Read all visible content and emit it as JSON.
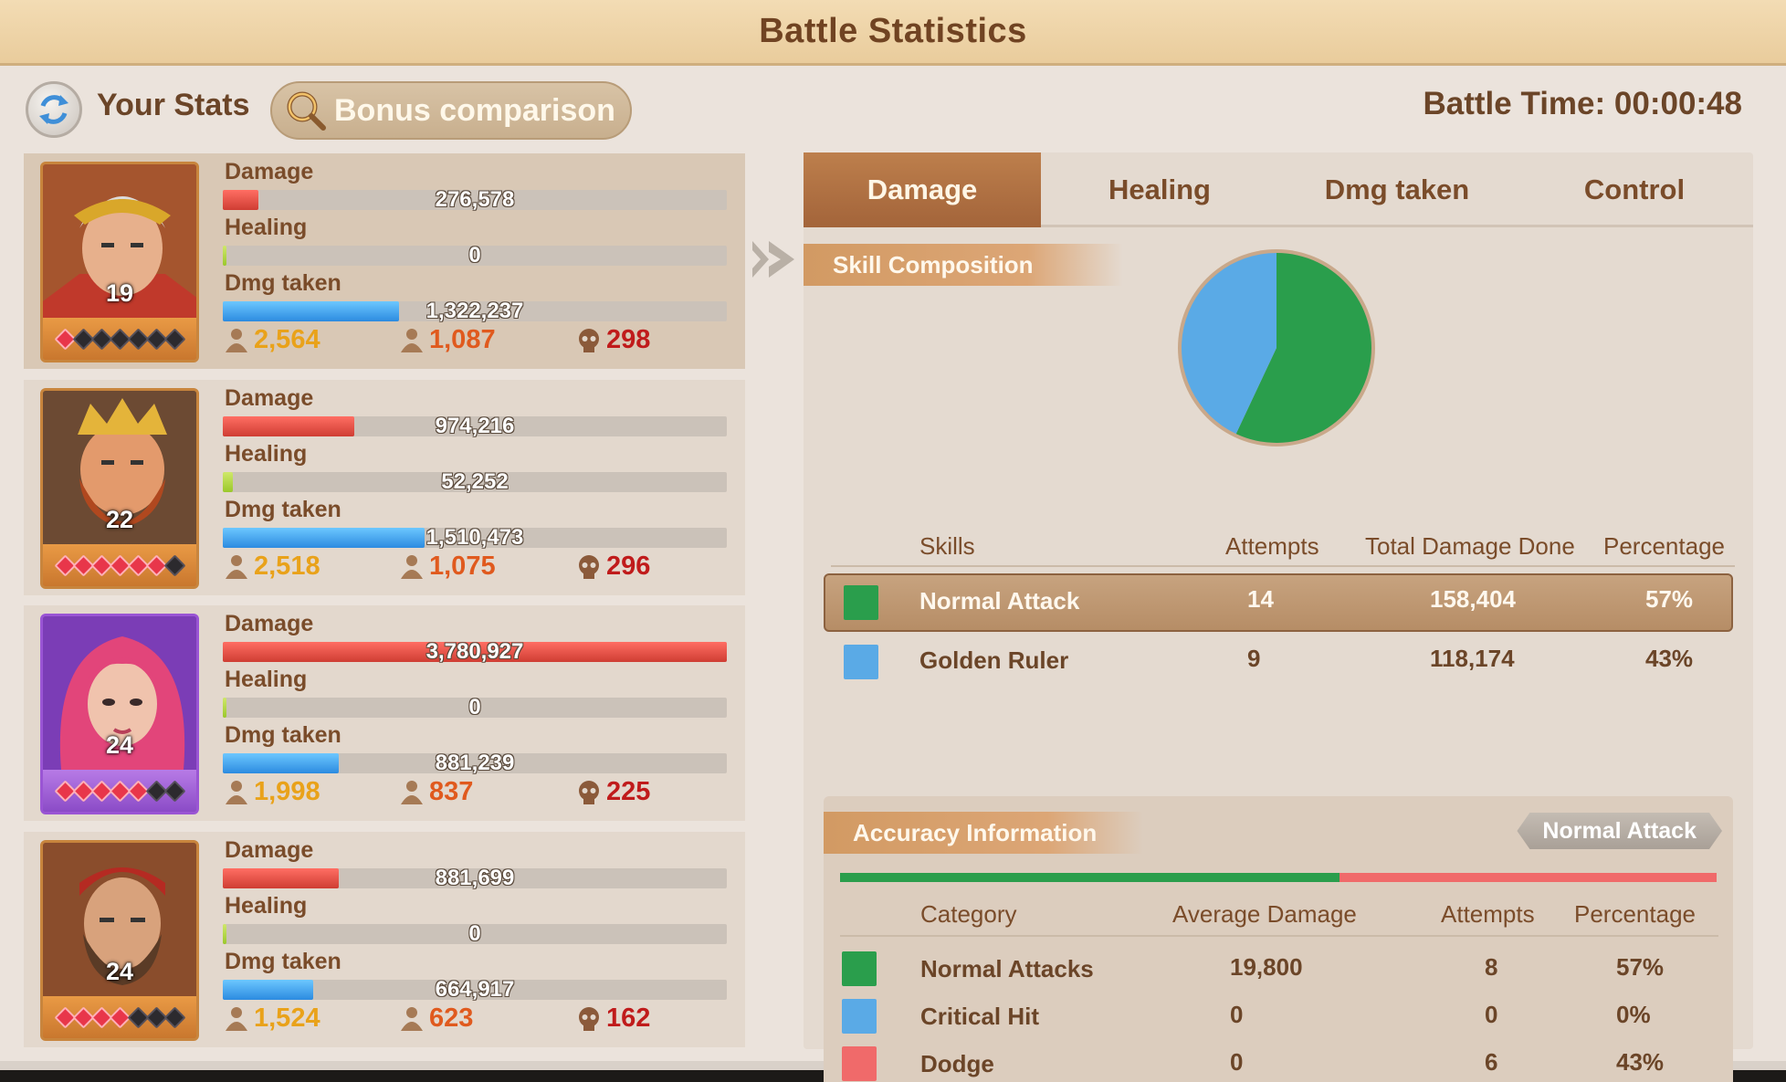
{
  "title": "Battle Statistics",
  "header": {
    "your_stats_label": "Your Stats",
    "bonus_button_label": "Bonus comparison",
    "battle_time": "Battle Time: 00:00:48"
  },
  "stat_labels": {
    "damage": "Damage",
    "healing": "Healing",
    "dmg_taken": "Dmg taken"
  },
  "heroes": [
    {
      "level": "19",
      "stars_on": 1,
      "stars_total": 7,
      "frame": "orange",
      "damage": "276,578",
      "damage_frac": 0.07,
      "healing": "0",
      "healing_frac": 0.0,
      "dmg_taken": "1,322,237",
      "dmg_taken_frac": 0.35,
      "kills_1": "2,564",
      "kills_2": "1,087",
      "deaths": "298"
    },
    {
      "level": "22",
      "stars_on": 6,
      "stars_total": 7,
      "frame": "orange",
      "damage": "974,216",
      "damage_frac": 0.26,
      "healing": "52,252",
      "healing_frac": 0.02,
      "dmg_taken": "1,510,473",
      "dmg_taken_frac": 0.4,
      "kills_1": "2,518",
      "kills_2": "1,075",
      "deaths": "296"
    },
    {
      "level": "24",
      "stars_on": 5,
      "stars_total": 7,
      "frame": "purple",
      "damage": "3,780,927",
      "damage_frac": 1.0,
      "healing": "0",
      "healing_frac": 0.0,
      "dmg_taken": "881,239",
      "dmg_taken_frac": 0.23,
      "kills_1": "1,998",
      "kills_2": "837",
      "deaths": "225"
    },
    {
      "level": "24",
      "stars_on": 4,
      "stars_total": 7,
      "frame": "orange",
      "damage": "881,699",
      "damage_frac": 0.23,
      "healing": "0",
      "healing_frac": 0.0,
      "dmg_taken": "664,917",
      "dmg_taken_frac": 0.18,
      "kills_1": "1,524",
      "kills_2": "623",
      "deaths": "162"
    }
  ],
  "tabs": [
    "Damage",
    "Healing",
    "Dmg taken",
    "Control"
  ],
  "active_tab": 0,
  "skill_composition": {
    "title": "Skill Composition",
    "headers": [
      "Skills",
      "Attempts",
      "Total Damage Done",
      "Percentage"
    ],
    "rows": [
      {
        "name": "Normal Attack",
        "attempts": "14",
        "total": "158,404",
        "percentage": "57%",
        "color": "#2a9e4c",
        "share": 57
      },
      {
        "name": "Golden Ruler",
        "attempts": "9",
        "total": "118,174",
        "percentage": "43%",
        "color": "#5aaae6",
        "share": 43
      }
    ]
  },
  "accuracy": {
    "title": "Accuracy Information",
    "selected_skill": "Normal Attack",
    "headers": [
      "Category",
      "Average Damage",
      "Attempts",
      "Percentage"
    ],
    "rows": [
      {
        "name": "Normal Attacks",
        "avg": "19,800",
        "attempts": "8",
        "percentage": "57%",
        "color": "#2a9e4c",
        "share": 57
      },
      {
        "name": "Critical Hit",
        "avg": "0",
        "attempts": "0",
        "percentage": "0%",
        "color": "#5aaae6",
        "share": 0
      },
      {
        "name": "Dodge",
        "avg": "0",
        "attempts": "6",
        "percentage": "43%",
        "color": "#f06a6a",
        "share": 43
      }
    ]
  },
  "colors": {
    "accent": "#a3643a",
    "damage_bar": "#d9443a",
    "healing_bar": "#a9d03a",
    "taken_bar": "#3a96e6"
  }
}
